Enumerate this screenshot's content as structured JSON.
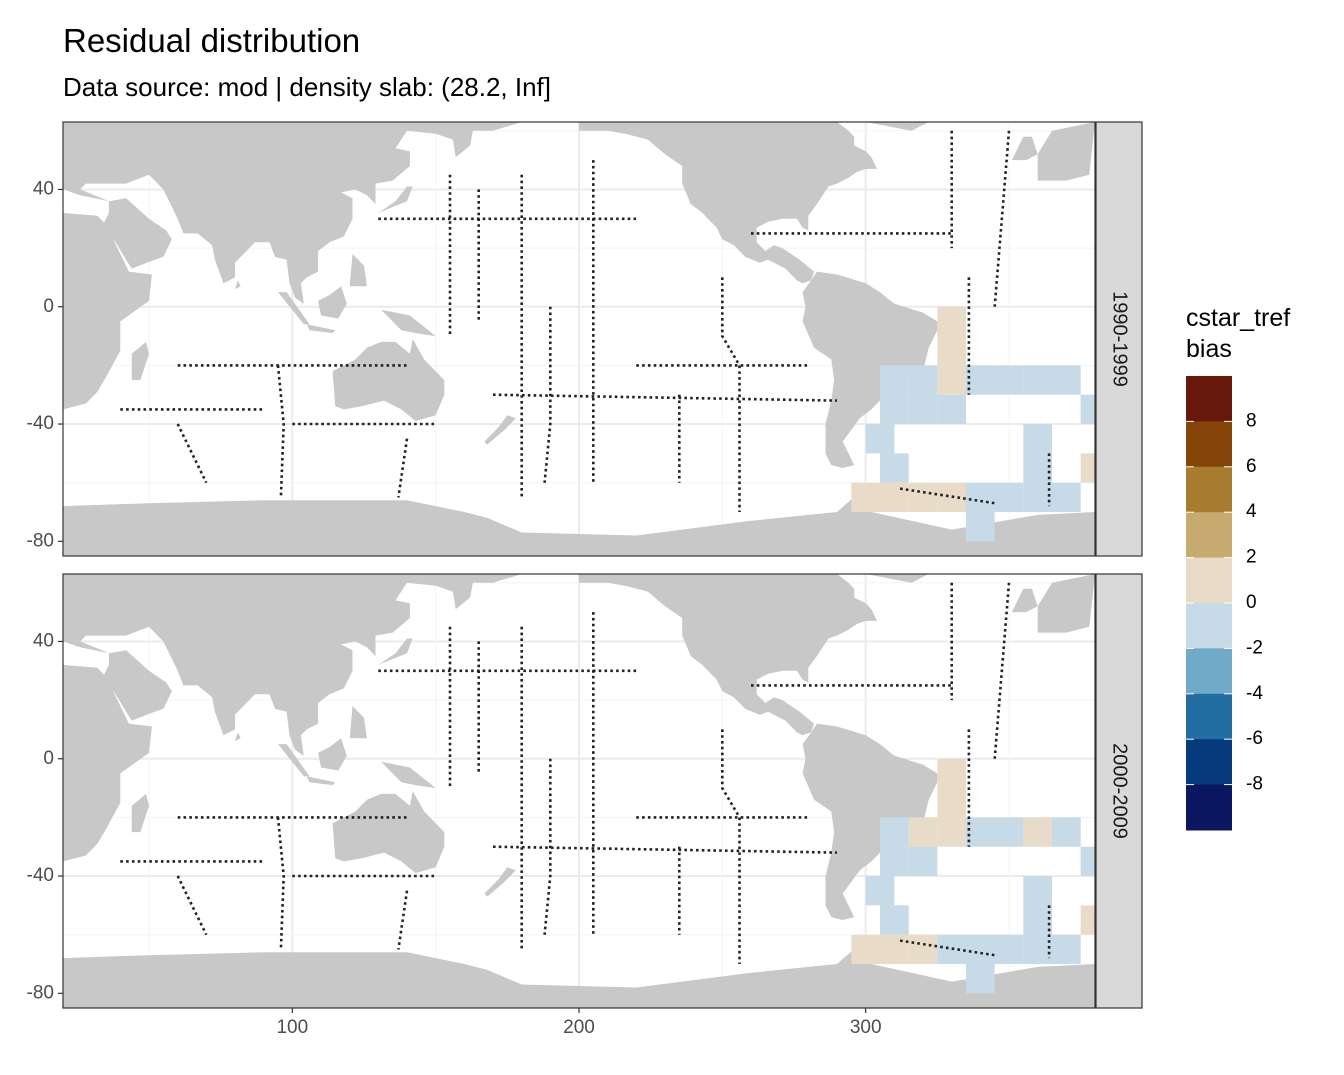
{
  "title": "Residual distribution",
  "subtitle": "Data source: mod | density slab: (28.2, Inf]",
  "colors": {
    "land": "#c8c8c8",
    "ocean": "#ffffff",
    "grid": "#ebebeb",
    "panel_border": "#333333",
    "strip_fill": "#d9d9d9",
    "track": "#222222"
  },
  "chart_data": {
    "type": "heatmap",
    "title": "Residual distribution",
    "subtitle": "Data source: mod | density slab: (28.2, Inf]",
    "xlabel": "",
    "ylabel": "",
    "xlim": [
      20,
      380
    ],
    "ylim": [
      -85,
      63
    ],
    "x_ticks": [
      "100",
      "200",
      "300"
    ],
    "x_tick_values": [
      100,
      200,
      300
    ],
    "y_ticks": [
      "40",
      "0",
      "-40",
      "-80"
    ],
    "y_tick_values": [
      40,
      0,
      -40,
      -80
    ],
    "grid": true,
    "legend": {
      "title_lines": [
        "cstar_tref",
        "bias"
      ],
      "placement": "right",
      "breaks": [
        10,
        8,
        6,
        4,
        2,
        0,
        -2,
        -4,
        -6,
        -8,
        -10
      ],
      "labels": [
        "8",
        "6",
        "4",
        "2",
        "0",
        "-2",
        "-4",
        "-6",
        "-8"
      ],
      "label_values": [
        8,
        6,
        4,
        2,
        0,
        -2,
        -4,
        -6,
        -8
      ],
      "colors": [
        "#67180a",
        "#864508",
        "#a87c2e",
        "#c7aa70",
        "#e8dcc8",
        "#c6dae7",
        "#71a9c8",
        "#226ea3",
        "#053a7c",
        "#0b1760"
      ]
    },
    "panels": [
      {
        "strip": "1990-1999",
        "cells": [
          {
            "lon": 330,
            "lat": -5,
            "value": 1
          },
          {
            "lon": 330,
            "lat": -15,
            "value": 1
          },
          {
            "lon": 330,
            "lat": -25,
            "value": 1
          },
          {
            "lon": 310,
            "lat": -25,
            "value": -1
          },
          {
            "lon": 320,
            "lat": -25,
            "value": -1
          },
          {
            "lon": 340,
            "lat": -25,
            "value": -1
          },
          {
            "lon": 350,
            "lat": -25,
            "value": -1
          },
          {
            "lon": 360,
            "lat": -25,
            "value": -1
          },
          {
            "lon": 370,
            "lat": -25,
            "value": -1
          },
          {
            "lon": 310,
            "lat": -35,
            "value": -1
          },
          {
            "lon": 320,
            "lat": -35,
            "value": -1
          },
          {
            "lon": 330,
            "lat": -35,
            "value": -1
          },
          {
            "lon": 380,
            "lat": -35,
            "value": -1
          },
          {
            "lon": 305,
            "lat": -45,
            "value": -1
          },
          {
            "lon": 360,
            "lat": -45,
            "value": -1
          },
          {
            "lon": 360,
            "lat": -55,
            "value": -1
          },
          {
            "lon": 310,
            "lat": -55,
            "value": -1
          },
          {
            "lon": 380,
            "lat": -55,
            "value": 1
          },
          {
            "lon": 300,
            "lat": -65,
            "value": 1
          },
          {
            "lon": 310,
            "lat": -65,
            "value": 1
          },
          {
            "lon": 320,
            "lat": -65,
            "value": 1
          },
          {
            "lon": 330,
            "lat": -65,
            "value": 1
          },
          {
            "lon": 340,
            "lat": -65,
            "value": -1
          },
          {
            "lon": 350,
            "lat": -65,
            "value": -1
          },
          {
            "lon": 360,
            "lat": -65,
            "value": -1
          },
          {
            "lon": 370,
            "lat": -65,
            "value": -1
          },
          {
            "lon": 340,
            "lat": -75,
            "value": -1
          }
        ]
      },
      {
        "strip": "2000-2009",
        "cells": [
          {
            "lon": 330,
            "lat": -5,
            "value": 1
          },
          {
            "lon": 330,
            "lat": -15,
            "value": 1
          },
          {
            "lon": 320,
            "lat": -25,
            "value": 1
          },
          {
            "lon": 330,
            "lat": -25,
            "value": 1
          },
          {
            "lon": 310,
            "lat": -25,
            "value": -1
          },
          {
            "lon": 340,
            "lat": -25,
            "value": -1
          },
          {
            "lon": 350,
            "lat": -25,
            "value": -1
          },
          {
            "lon": 360,
            "lat": -25,
            "value": 1
          },
          {
            "lon": 370,
            "lat": -25,
            "value": -1
          },
          {
            "lon": 310,
            "lat": -35,
            "value": -1
          },
          {
            "lon": 320,
            "lat": -35,
            "value": -1
          },
          {
            "lon": 380,
            "lat": -35,
            "value": -1
          },
          {
            "lon": 305,
            "lat": -45,
            "value": -1
          },
          {
            "lon": 360,
            "lat": -45,
            "value": -1
          },
          {
            "lon": 360,
            "lat": -55,
            "value": -1
          },
          {
            "lon": 310,
            "lat": -55,
            "value": -1
          },
          {
            "lon": 380,
            "lat": -55,
            "value": 1
          },
          {
            "lon": 300,
            "lat": -65,
            "value": 1
          },
          {
            "lon": 310,
            "lat": -65,
            "value": 1
          },
          {
            "lon": 320,
            "lat": -65,
            "value": 1
          },
          {
            "lon": 330,
            "lat": -65,
            "value": -1
          },
          {
            "lon": 340,
            "lat": -65,
            "value": -1
          },
          {
            "lon": 350,
            "lat": -65,
            "value": -1
          },
          {
            "lon": 360,
            "lat": -65,
            "value": -1
          },
          {
            "lon": 370,
            "lat": -65,
            "value": -1
          },
          {
            "lon": 340,
            "lat": -75,
            "value": -1
          }
        ]
      }
    ]
  }
}
